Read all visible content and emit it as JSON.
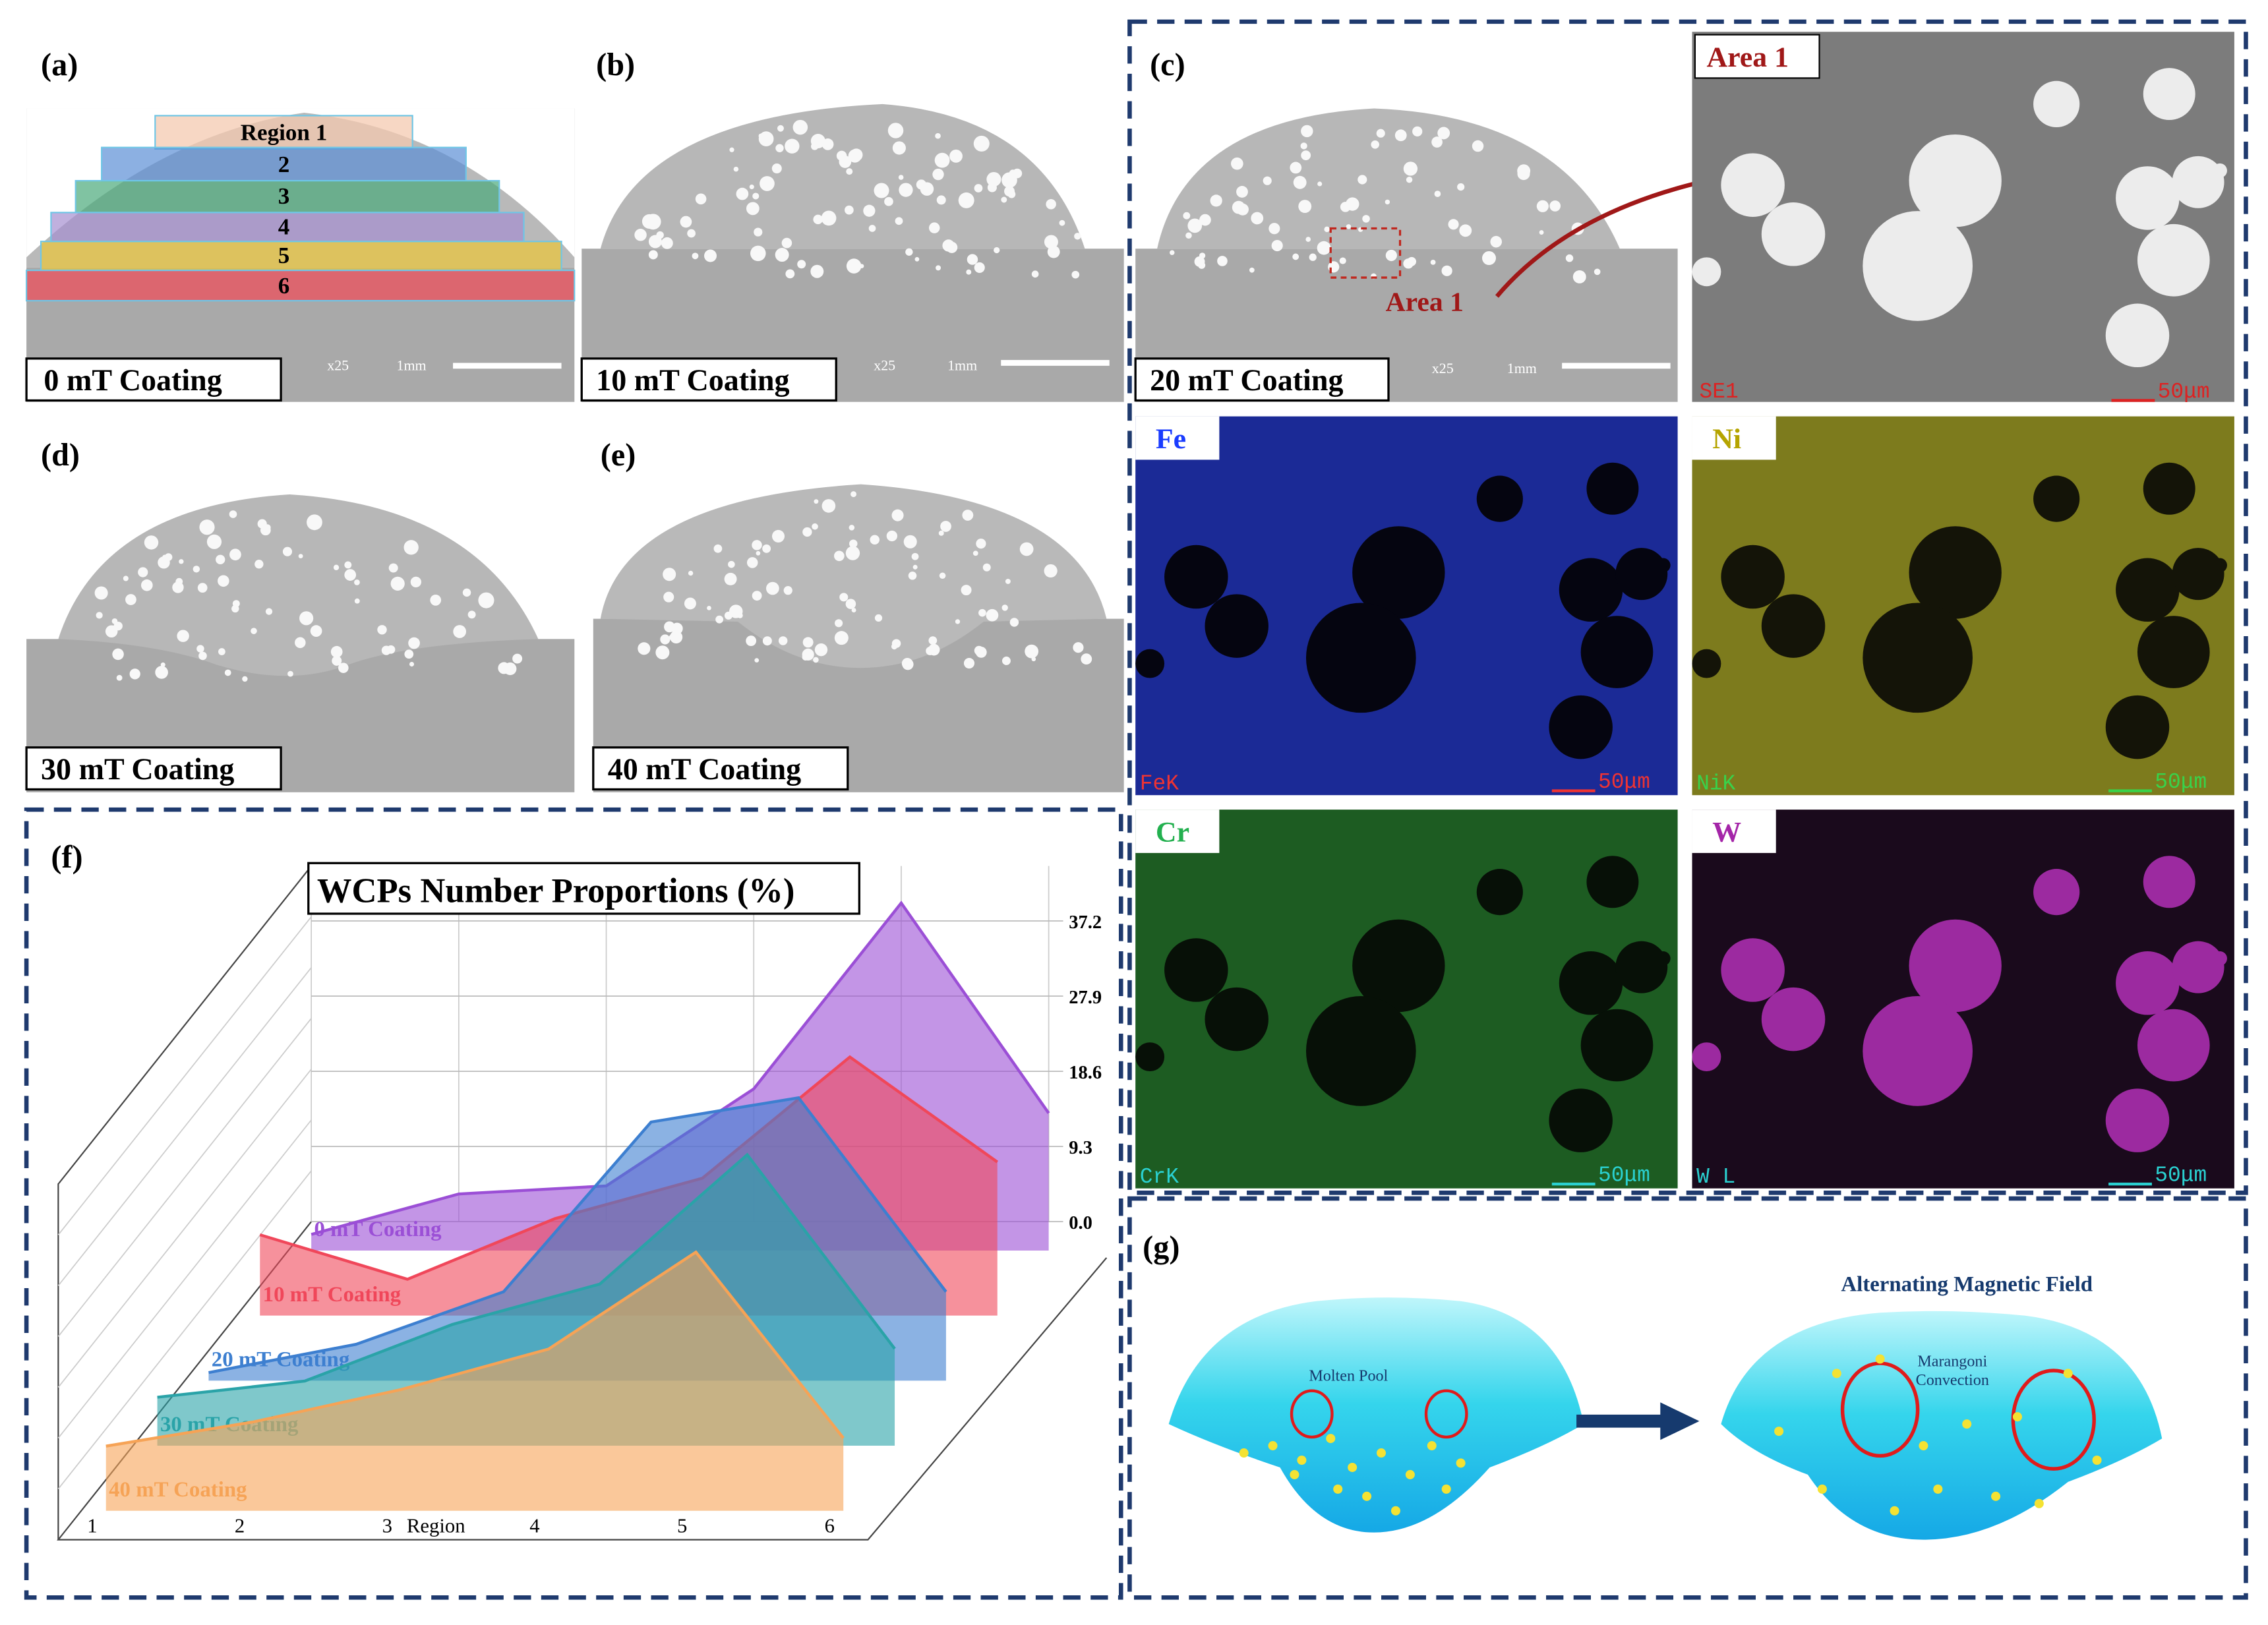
{
  "panels": {
    "a": {
      "label": "(a)",
      "caption": "0 mT Coating",
      "regions": [
        "Region 1",
        "2",
        "3",
        "4",
        "5",
        "6"
      ]
    },
    "b": {
      "label": "(b)",
      "caption": "10 mT Coating"
    },
    "c": {
      "label": "(c)",
      "caption": "20 mT Coating",
      "annotation": "Area 1",
      "inset": {
        "title": "Area 1",
        "detector": "SE1",
        "scale": "50μm"
      }
    },
    "d": {
      "label": "(d)",
      "caption": "30 mT Coating"
    },
    "e": {
      "label": "(e)",
      "caption": "40 mT Coating"
    },
    "f": {
      "label": "(f)"
    },
    "g": {
      "label": "(g)",
      "field": "Alternating Magnetic Field",
      "pool": "Molten Pool",
      "convection": "Marangoni Convection"
    }
  },
  "scale_bar": {
    "magnification": "x25",
    "length": "1mm"
  },
  "maps": [
    {
      "element": "Fe",
      "signal": "FeK",
      "scale": "50μm"
    },
    {
      "element": "Ni",
      "signal": "NiK",
      "scale": "50μm"
    },
    {
      "element": "Cr",
      "signal": "CrK",
      "scale": "50μm"
    },
    {
      "element": "W",
      "signal": "W L",
      "scale": "50μm"
    }
  ],
  "chart_data": {
    "type": "area3d",
    "title": "WCPs Number Proportions (%)",
    "x_label": "Region",
    "categories": [
      "1",
      "2",
      "3",
      "4",
      "5",
      "6"
    ],
    "ylim": [
      0,
      44
    ],
    "yticks": [
      {
        "value": 0,
        "label": "0.0"
      },
      9.3,
      18.6,
      27.9,
      37.2
    ],
    "series": [
      {
        "name": "0 mT Coating",
        "color": "#9b4fd6",
        "values": [
          2,
          7,
          8,
          20,
          43,
          17
        ]
      },
      {
        "name": "10 mT Coating",
        "color": "#f0475a",
        "values": [
          10,
          4.5,
          12,
          17,
          32,
          19
        ]
      },
      {
        "name": "20 mT Coating",
        "color": "#3d7fd0",
        "values": [
          1,
          4.5,
          11,
          32,
          35,
          11
        ]
      },
      {
        "name": "30 mT Coating",
        "color": "#2aa3a8",
        "values": [
          6,
          8,
          15,
          20,
          36,
          12
        ]
      },
      {
        "name": "40 mT Coating",
        "color": "#f6a356",
        "values": [
          8,
          11,
          15,
          20,
          32,
          9
        ]
      }
    ]
  }
}
